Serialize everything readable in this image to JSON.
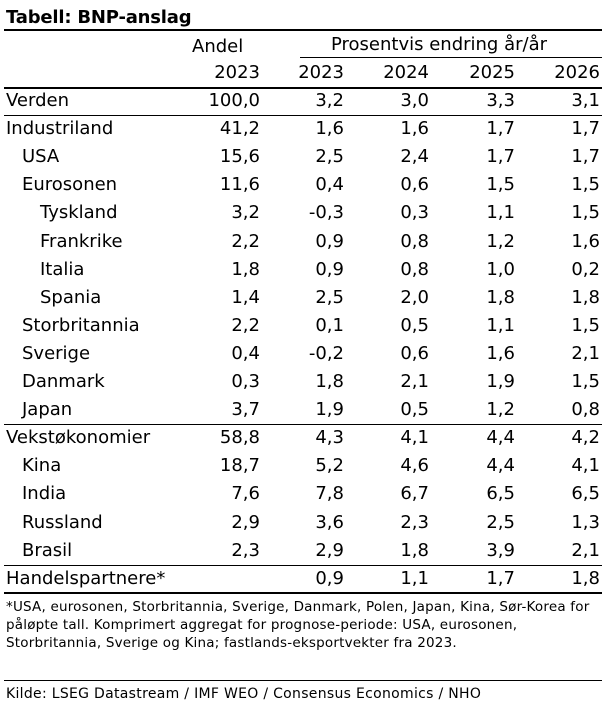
{
  "table": {
    "title": "Tabell: BNP-anslag",
    "header": {
      "share_label": "Andel",
      "share_year": "2023",
      "group_label": "Prosentvis endring år/år",
      "years": [
        "2023",
        "2024",
        "2025",
        "2026"
      ]
    },
    "rows": [
      {
        "label": "Verden",
        "indent": 0,
        "share": "100,0",
        "values": [
          "3,2",
          "3,0",
          "3,3",
          "3,1"
        ]
      },
      {
        "label": "Industriland",
        "indent": 0,
        "share": "41,2",
        "values": [
          "1,6",
          "1,6",
          "1,7",
          "1,7"
        ]
      },
      {
        "label": "USA",
        "indent": 1,
        "share": "15,6",
        "values": [
          "2,5",
          "2,4",
          "1,7",
          "1,7"
        ]
      },
      {
        "label": "Eurosonen",
        "indent": 1,
        "share": "11,6",
        "values": [
          "0,4",
          "0,6",
          "1,5",
          "1,5"
        ]
      },
      {
        "label": "Tyskland",
        "indent": 2,
        "share": "3,2",
        "values": [
          "-0,3",
          "0,3",
          "1,1",
          "1,5"
        ]
      },
      {
        "label": "Frankrike",
        "indent": 2,
        "share": "2,2",
        "values": [
          "0,9",
          "0,8",
          "1,2",
          "1,6"
        ]
      },
      {
        "label": "Italia",
        "indent": 2,
        "share": "1,8",
        "values": [
          "0,9",
          "0,8",
          "1,0",
          "0,2"
        ]
      },
      {
        "label": "Spania",
        "indent": 2,
        "share": "1,4",
        "values": [
          "2,5",
          "2,0",
          "1,8",
          "1,8"
        ]
      },
      {
        "label": "Storbritannia",
        "indent": 1,
        "share": "2,2",
        "values": [
          "0,1",
          "0,5",
          "1,1",
          "1,5"
        ]
      },
      {
        "label": "Sverige",
        "indent": 1,
        "share": "0,4",
        "values": [
          "-0,2",
          "0,6",
          "1,6",
          "2,1"
        ]
      },
      {
        "label": "Danmark",
        "indent": 1,
        "share": "0,3",
        "values": [
          "1,8",
          "2,1",
          "1,9",
          "1,5"
        ]
      },
      {
        "label": "Japan",
        "indent": 1,
        "share": "3,7",
        "values": [
          "1,9",
          "0,5",
          "1,2",
          "0,8"
        ]
      },
      {
        "label": "Vekstøkonomier",
        "indent": 0,
        "share": "58,8",
        "values": [
          "4,3",
          "4,1",
          "4,4",
          "4,2"
        ]
      },
      {
        "label": "Kina",
        "indent": 1,
        "share": "18,7",
        "values": [
          "5,2",
          "4,6",
          "4,4",
          "4,1"
        ]
      },
      {
        "label": "India",
        "indent": 1,
        "share": "7,6",
        "values": [
          "7,8",
          "6,7",
          "6,5",
          "6,5"
        ]
      },
      {
        "label": "Russland",
        "indent": 1,
        "share": "2,9",
        "values": [
          "3,6",
          "2,3",
          "2,5",
          "1,3"
        ]
      },
      {
        "label": "Brasil",
        "indent": 1,
        "share": "2,3",
        "values": [
          "2,9",
          "1,8",
          "3,9",
          "2,1"
        ]
      },
      {
        "label": "Handelspartnere*",
        "indent": 0,
        "share": "",
        "values": [
          "0,9",
          "1,1",
          "1,7",
          "1,8"
        ]
      }
    ],
    "footnote": "*USA, eurosonen, Storbritannia, Sverige, Danmark, Polen, Japan, Kina, Sør-Korea for påløpte tall. Komprimert aggregat for prognose-periode: USA, eurosonen, Storbritannia, Sverige og Kina; fastlands-eksportvekter fra 2023.",
    "source": "Kilde: LSEG Datastream / IMF WEO / Consensus Economics / NHO"
  }
}
